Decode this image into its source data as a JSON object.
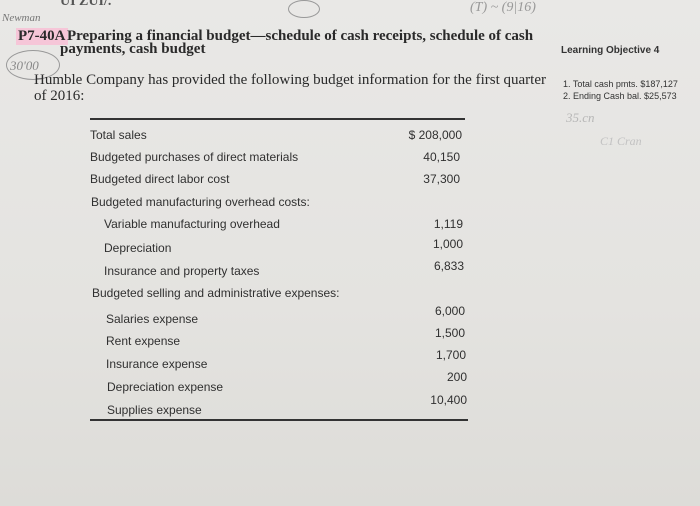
{
  "handwriting": {
    "top": "UI ZUI/.",
    "corner": "Newman",
    "left_margin": "30'00",
    "top_right": "(T)   ~ (9|16)",
    "right1": "35.cn",
    "right2": "C1 Cran"
  },
  "problem": {
    "id": "P7-40A",
    "title_line1": "Preparing a financial budget—schedule of cash receipts, schedule of cash",
    "title_line2": "payments, cash budget",
    "intro_line1": "Humble Company has provided the following budget information for the first quarter",
    "intro_line2": "of 2016:"
  },
  "sidebar": {
    "learning_objective": "Learning Objective 4",
    "answers": [
      "1. Total cash pmts. $187,127",
      "2. Ending Cash bal. $25,573"
    ]
  },
  "budget_table": {
    "rows": [
      {
        "label": "Total sales",
        "value": "$ 208,000"
      },
      {
        "label": "Budgeted purchases of direct materials",
        "value": "40,150"
      },
      {
        "label": "Budgeted direct labor cost",
        "value": "37,300"
      },
      {
        "label": "Budgeted manufacturing overhead costs:",
        "value": ""
      },
      {
        "label": "Variable manufacturing overhead",
        "value": "1,119"
      },
      {
        "label": "Depreciation",
        "value": "1,000"
      },
      {
        "label": "Insurance and property taxes",
        "value": "6,833"
      },
      {
        "label": "Budgeted selling and administrative expenses:",
        "value": ""
      },
      {
        "label": "Salaries expense",
        "value": "6,000"
      },
      {
        "label": "Rent expense",
        "value": "1,500"
      },
      {
        "label": "Insurance expense",
        "value": "1,700"
      },
      {
        "label": "Depreciation expense",
        "value": "200"
      },
      {
        "label": "Supplies expense",
        "value": "10,400"
      }
    ]
  }
}
